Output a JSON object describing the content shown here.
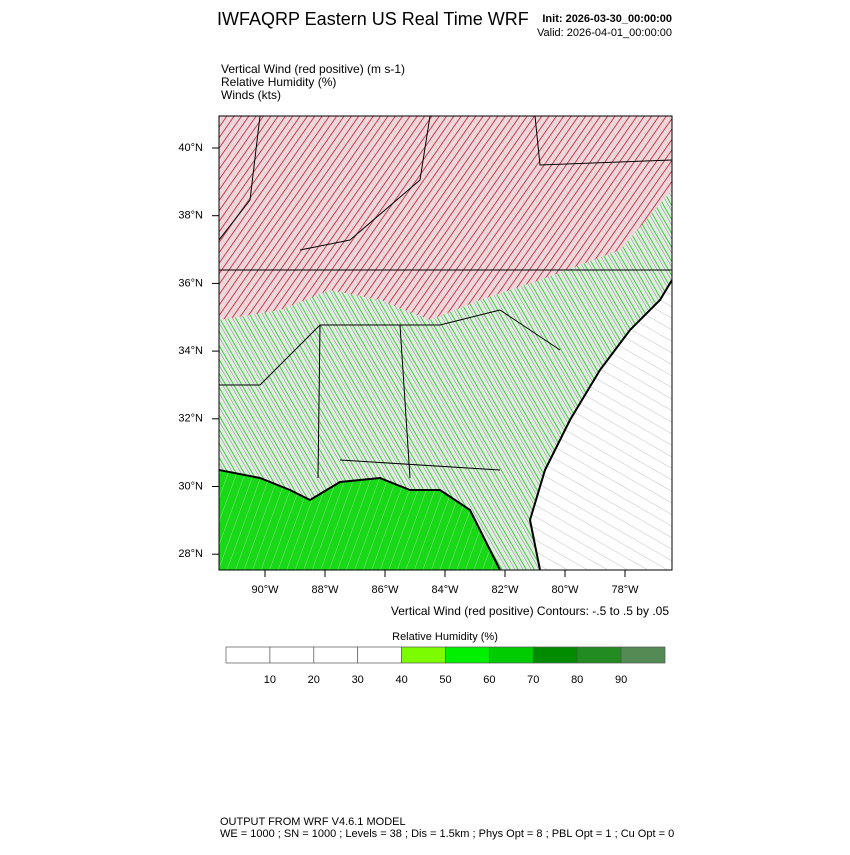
{
  "header": {
    "title": "IWFAQRP Eastern US Real Time WRF",
    "init": "Init: 2026-03-30_00:00:00",
    "valid": "Valid: 2026-04-01_00:00:00"
  },
  "fields": [
    "Vertical Wind (red positive)   (m s-1)",
    "Relative Humidity   (%)",
    "Winds   (kts)"
  ],
  "map": {
    "lat_labels": [
      "40°N",
      "38°N",
      "36°N",
      "34°N",
      "32°N",
      "30°N",
      "28°N"
    ],
    "lon_labels": [
      "90°W",
      "88°W",
      "86°W",
      "84°W",
      "82°W",
      "80°W",
      "78°W"
    ]
  },
  "contour_note": "Vertical Wind (red positive) Contours: -.5 to .5 by .05",
  "colorbar": {
    "title": "Relative Humidity  (%)",
    "labels": [
      "10",
      "20",
      "30",
      "40",
      "50",
      "60",
      "70",
      "80",
      "90"
    ],
    "colors": [
      "#ffffff",
      "#ffffff",
      "#ffffff",
      "#ffffff",
      "#7cfc00",
      "#00f000",
      "#00cd00",
      "#008b00",
      "#228b22",
      "#548b54"
    ]
  },
  "footer": {
    "line1": "OUTPUT FROM WRF V4.6.1 MODEL",
    "line2": "WE = 1000 ; SN = 1000 ; Levels = 38 ; Dis = 1.5km ; Phys Opt = 8 ; PBL Opt = 1 ; Cu Opt = 0"
  }
}
